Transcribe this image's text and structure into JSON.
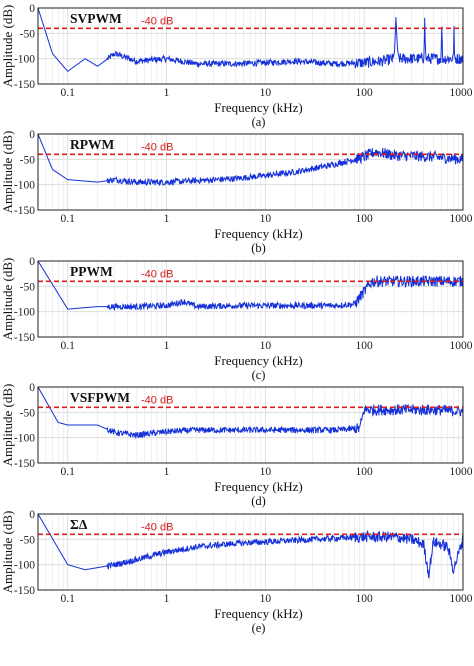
{
  "figure": {
    "threshold_label": "-40 dB",
    "x_axis_label": "Frequency (kHz)",
    "y_axis_label": "Amplitude (dB)",
    "x_tick_labels": [
      "0.1",
      "1",
      "10",
      "100",
      "1000"
    ],
    "y_tick_labels": [
      "0",
      "-50",
      "-100",
      "-150"
    ],
    "colors": {
      "trace": "#1430d8",
      "threshold": "#d62020",
      "grid": "#d9d9d9",
      "axes": "#222222"
    }
  },
  "chart_data": [
    {
      "type": "line",
      "title": "SVPWM",
      "caption": "(a)",
      "xlabel": "Frequency (kHz)",
      "ylabel": "Amplitude (dB)",
      "x_scale": "log",
      "xlim": [
        0.05,
        1000
      ],
      "ylim": [
        -150,
        0
      ],
      "threshold_db": -40,
      "x": [
        0.05,
        0.07,
        0.1,
        0.15,
        0.2,
        0.3,
        0.5,
        1,
        2,
        5,
        10,
        20,
        50,
        100,
        150,
        200,
        210,
        220,
        300,
        400,
        410,
        420,
        500,
        600,
        610,
        620,
        700,
        800,
        810,
        820,
        1000
      ],
      "y": [
        0,
        -90,
        -125,
        -100,
        -115,
        -90,
        -105,
        -100,
        -110,
        -110,
        -108,
        -105,
        -110,
        -108,
        -105,
        -100,
        -25,
        -100,
        -100,
        -100,
        -25,
        -100,
        -100,
        -100,
        -28,
        -100,
        -100,
        -100,
        -28,
        -100,
        -100
      ]
    },
    {
      "type": "line",
      "title": "RPWM",
      "caption": "(b)",
      "xlabel": "Frequency (kHz)",
      "ylabel": "Amplitude (dB)",
      "x_scale": "log",
      "xlim": [
        0.05,
        1000
      ],
      "ylim": [
        -150,
        0
      ],
      "threshold_db": -40,
      "x": [
        0.05,
        0.07,
        0.1,
        0.2,
        0.3,
        0.5,
        1,
        2,
        5,
        10,
        20,
        50,
        100,
        130,
        200,
        500,
        1000
      ],
      "y": [
        0,
        -70,
        -90,
        -95,
        -90,
        -95,
        -95,
        -92,
        -88,
        -82,
        -75,
        -60,
        -45,
        -35,
        -42,
        -45,
        -50
      ]
    },
    {
      "type": "line",
      "title": "PPWM",
      "caption": "(c)",
      "xlabel": "Frequency (kHz)",
      "ylabel": "Amplitude (dB)",
      "x_scale": "log",
      "xlim": [
        0.05,
        1000
      ],
      "ylim": [
        -150,
        0
      ],
      "threshold_db": -40,
      "x": [
        0.05,
        0.1,
        0.2,
        0.5,
        1,
        1.5,
        2,
        5,
        10,
        20,
        50,
        80,
        100,
        120,
        200,
        500,
        1000
      ],
      "y": [
        0,
        -95,
        -90,
        -90,
        -88,
        -80,
        -90,
        -88,
        -88,
        -88,
        -88,
        -85,
        -60,
        -40,
        -40,
        -40,
        -40
      ]
    },
    {
      "type": "line",
      "title": "VSFPWM",
      "caption": "(d)",
      "xlabel": "Frequency (kHz)",
      "ylabel": "Amplitude (dB)",
      "x_scale": "log",
      "xlim": [
        0.05,
        1000
      ],
      "ylim": [
        -150,
        0
      ],
      "threshold_db": -40,
      "x": [
        0.05,
        0.08,
        0.1,
        0.2,
        0.3,
        0.5,
        1,
        2,
        5,
        10,
        20,
        50,
        90,
        100,
        150,
        200,
        500,
        1000
      ],
      "y": [
        0,
        -70,
        -75,
        -75,
        -90,
        -95,
        -88,
        -85,
        -85,
        -85,
        -85,
        -85,
        -82,
        -45,
        -45,
        -45,
        -45,
        -48
      ]
    },
    {
      "type": "line",
      "title": "ΣΔ",
      "caption": "(e)",
      "xlabel": "Frequency (kHz)",
      "ylabel": "Amplitude (dB)",
      "x_scale": "log",
      "xlim": [
        0.05,
        1000
      ],
      "ylim": [
        -150,
        0
      ],
      "threshold_db": -40,
      "x": [
        0.05,
        0.1,
        0.15,
        0.3,
        0.5,
        1,
        2,
        5,
        10,
        20,
        50,
        100,
        200,
        300,
        400,
        450,
        500,
        600,
        700,
        800,
        1000
      ],
      "y": [
        0,
        -100,
        -110,
        -100,
        -90,
        -75,
        -65,
        -58,
        -55,
        -52,
        -48,
        -45,
        -45,
        -50,
        -60,
        -120,
        -55,
        -60,
        -65,
        -110,
        -50
      ]
    }
  ]
}
